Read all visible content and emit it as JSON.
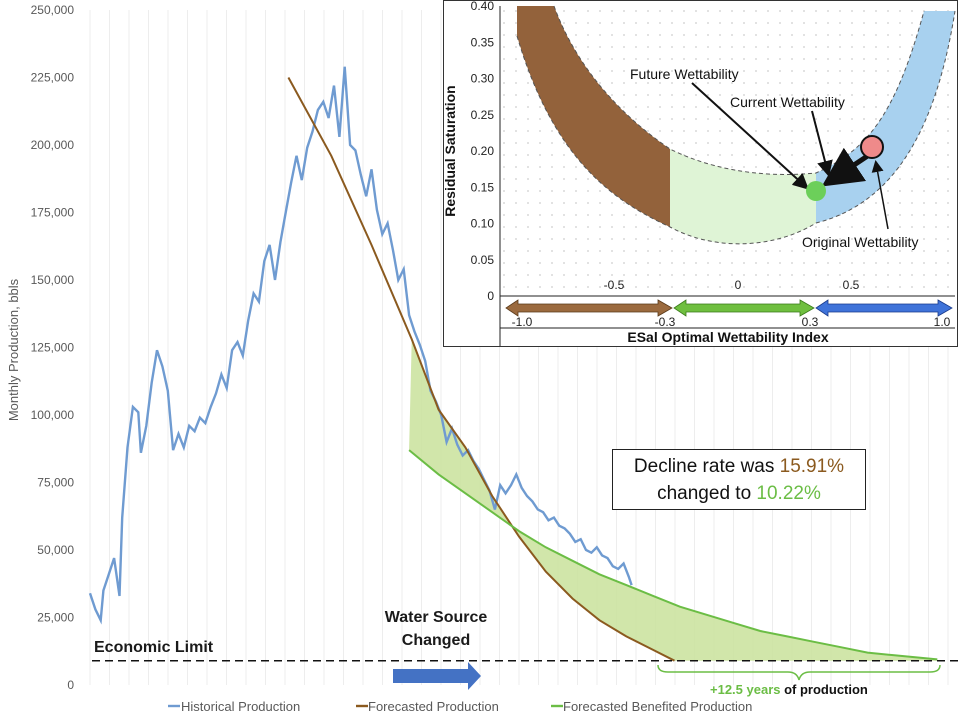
{
  "chart_data": [
    {
      "type": "line",
      "ylabel": "Monthly Production, bbls",
      "ylim": [
        0,
        250000
      ],
      "yticks": [
        "0",
        "25,000",
        "50,000",
        "75,000",
        "100,000",
        "125,000",
        "150,000",
        "175,000",
        "200,000",
        "225,000",
        "250,000"
      ],
      "grid": "vertical",
      "legend_position": "bottom",
      "x_months": [
        0,
        320
      ],
      "series": [
        {
          "name": "Historical Production",
          "color": "#6f9bd1",
          "points": [
            [
              0,
              34000
            ],
            [
              2,
              28000
            ],
            [
              4,
              24000
            ],
            [
              5,
              35000
            ],
            [
              7,
              41000
            ],
            [
              9,
              47000
            ],
            [
              11,
              33000
            ],
            [
              12,
              62000
            ],
            [
              14,
              88000
            ],
            [
              16,
              103000
            ],
            [
              18,
              101000
            ],
            [
              19,
              86000
            ],
            [
              21,
              96000
            ],
            [
              23,
              112000
            ],
            [
              25,
              124000
            ],
            [
              27,
              118000
            ],
            [
              29,
              109000
            ],
            [
              31,
              87000
            ],
            [
              33,
              93000
            ],
            [
              35,
              88000
            ],
            [
              37,
              96000
            ],
            [
              39,
              94000
            ],
            [
              41,
              99000
            ],
            [
              43,
              97000
            ],
            [
              45,
              103000
            ],
            [
              47,
              108000
            ],
            [
              49,
              115000
            ],
            [
              51,
              110000
            ],
            [
              53,
              124000
            ],
            [
              55,
              127000
            ],
            [
              57,
              122000
            ],
            [
              59,
              135000
            ],
            [
              61,
              145000
            ],
            [
              63,
              142000
            ],
            [
              65,
              157000
            ],
            [
              67,
              163000
            ],
            [
              69,
              150000
            ],
            [
              71,
              164000
            ],
            [
              73,
              175000
            ],
            [
              75,
              186000
            ],
            [
              77,
              196000
            ],
            [
              79,
              187000
            ],
            [
              81,
              199000
            ],
            [
              83,
              205000
            ],
            [
              85,
              213000
            ],
            [
              87,
              216000
            ],
            [
              89,
              210000
            ],
            [
              91,
              222000
            ],
            [
              93,
              203000
            ],
            [
              95,
              229000
            ],
            [
              97,
              200000
            ],
            [
              99,
              198000
            ],
            [
              101,
              189000
            ],
            [
              103,
              181000
            ],
            [
              105,
              191000
            ],
            [
              107,
              176000
            ],
            [
              109,
              167000
            ],
            [
              111,
              171000
            ],
            [
              113,
              161000
            ],
            [
              115,
              150000
            ],
            [
              117,
              154000
            ],
            [
              119,
              137000
            ],
            [
              121,
              131000
            ],
            [
              123,
              126000
            ],
            [
              125,
              120000
            ],
            [
              127,
              109000
            ],
            [
              129,
              105000
            ],
            [
              131,
              100000
            ],
            [
              133,
              90000
            ],
            [
              135,
              95000
            ],
            [
              137,
              89000
            ],
            [
              139,
              85000
            ],
            [
              141,
              87000
            ],
            [
              143,
              83000
            ],
            [
              145,
              80000
            ],
            [
              147,
              76000
            ],
            [
              149,
              72000
            ],
            [
              151,
              65000
            ],
            [
              153,
              74000
            ],
            [
              155,
              71000
            ],
            [
              157,
              74000
            ],
            [
              159,
              78000
            ],
            [
              161,
              73000
            ],
            [
              163,
              70000
            ],
            [
              165,
              68000
            ],
            [
              167,
              65000
            ],
            [
              169,
              64000
            ],
            [
              171,
              61000
            ],
            [
              173,
              62000
            ],
            [
              175,
              59000
            ],
            [
              177,
              58000
            ],
            [
              179,
              56000
            ],
            [
              181,
              53000
            ],
            [
              183,
              54000
            ],
            [
              185,
              50000
            ],
            [
              187,
              49000
            ],
            [
              189,
              51000
            ],
            [
              191,
              48000
            ],
            [
              193,
              47000
            ],
            [
              195,
              44000
            ],
            [
              197,
              43000
            ],
            [
              199,
              45000
            ],
            [
              201,
              40000
            ],
            [
              202,
              37000
            ]
          ]
        },
        {
          "name": "Forecasted Production",
          "color": "#8b5a1f",
          "decline_rate": "15.91%",
          "points": [
            [
              74,
              225000
            ],
            [
              90,
              196000
            ],
            [
              105,
              163000
            ],
            [
              120,
              128000
            ],
            [
              130,
              102000
            ],
            [
              140,
              88000
            ],
            [
              150,
              70000
            ],
            [
              160,
              55000
            ],
            [
              170,
              42000
            ],
            [
              180,
              32000
            ],
            [
              190,
              24000
            ],
            [
              200,
              18000
            ],
            [
              210,
              13000
            ],
            [
              218,
              9000
            ]
          ]
        },
        {
          "name": "Forecasted Benefited Production",
          "color": "#6bbd45",
          "decline_rate": "10.22%",
          "points": [
            [
              119,
              87000
            ],
            [
              130,
              78000
            ],
            [
              140,
              71000
            ],
            [
              150,
              64000
            ],
            [
              160,
              57000
            ],
            [
              170,
              51000
            ],
            [
              180,
              46000
            ],
            [
              190,
              41000
            ],
            [
              200,
              37000
            ],
            [
              210,
              33000
            ],
            [
              220,
              29000
            ],
            [
              230,
              26000
            ],
            [
              240,
              23000
            ],
            [
              250,
              20000
            ],
            [
              260,
              18000
            ],
            [
              270,
              16000
            ],
            [
              280,
              14000
            ],
            [
              290,
              12000
            ],
            [
              300,
              11000
            ],
            [
              316,
              9500
            ]
          ]
        }
      ],
      "annotations": {
        "economic_limit": {
          "label": "Economic Limit",
          "value": 9000
        },
        "water_source": {
          "line1": "Water Source",
          "line2": "Changed"
        },
        "extension": {
          "highlight": "+12.5 years",
          "rest": "of production"
        },
        "decline_box": {
          "prefix1": "Decline rate was ",
          "old_rate": "15.91%",
          "prefix2": "changed to ",
          "new_rate": "10.22%"
        }
      }
    },
    {
      "type": "diagram",
      "xlabel": "ESal Optimal Wettability Index",
      "ylabel": "Residual Saturation",
      "yticks": [
        "0",
        "0.05",
        "0.10",
        "0.15",
        "0.20",
        "0.25",
        "0.30",
        "0.35",
        "0.40"
      ],
      "xticks": [
        "-0.5",
        "0",
        "0.5"
      ],
      "range_labels": [
        "-1.0",
        "-0.3",
        "0.3",
        "1.0"
      ],
      "range_colors": {
        "oil_wet": "#8b5a2b",
        "optimal": "#6fbf3f",
        "water_wet": "#3f73d9"
      },
      "labels": {
        "future": "Future Wettability",
        "current": "Current Wettability",
        "original": "Original Wettability"
      }
    }
  ]
}
